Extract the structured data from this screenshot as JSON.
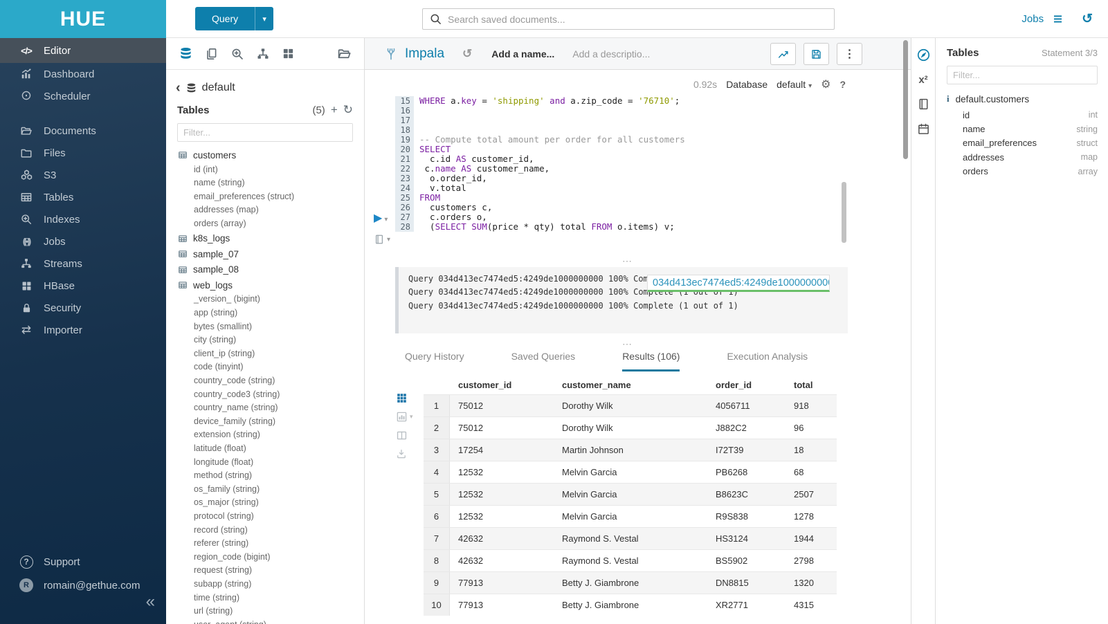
{
  "brand": {
    "name": "HUE"
  },
  "colors": {
    "accent": "#0e7fac",
    "header": "#2ba9c9",
    "sidebar": "#16314c",
    "tab_underline": "#17799f",
    "popover_underline": "#6abf69",
    "keyword": "#7b1fa2",
    "string": "#8f9a00"
  },
  "icons": {
    "editor": "</>",
    "scheduler": "⊙",
    "importer": "⇄",
    "jobs": "((•))",
    "kebab": "⋮",
    "gear": "⚙",
    "help": "?",
    "history": "↺",
    "caret_down": "▾",
    "back": "‹",
    "plus": "+",
    "refresh": "↻",
    "play": "▶",
    "collapse": "«",
    "superscript": "x²",
    "info": "i",
    "ellipsis": "⋯",
    "support": "?"
  },
  "topbar": {
    "query_label": "Query",
    "search_placeholder": "Search saved documents...",
    "jobs_label": "Jobs"
  },
  "sidebar": {
    "items": [
      {
        "label": "Editor"
      },
      {
        "label": "Dashboard"
      },
      {
        "label": "Scheduler"
      },
      {
        "label": "Documents"
      },
      {
        "label": "Files"
      },
      {
        "label": "S3"
      },
      {
        "label": "Tables"
      },
      {
        "label": "Indexes"
      },
      {
        "label": "Jobs"
      },
      {
        "label": "Streams"
      },
      {
        "label": "HBase"
      },
      {
        "label": "Security"
      },
      {
        "label": "Importer"
      }
    ],
    "support_label": "Support",
    "user_email": "romain@gethue.com",
    "user_initial": "R"
  },
  "assist": {
    "breadcrumb": "default",
    "tables_title": "Tables",
    "tables_count": "(5)",
    "filter_placeholder": "Filter...",
    "customers": {
      "name": "customers",
      "columns": [
        "id (int)",
        "name (string)",
        "email_preferences (struct)",
        "addresses (map)",
        "orders (array)"
      ]
    },
    "k8s_logs": {
      "name": "k8s_logs"
    },
    "sample_07": {
      "name": "sample_07"
    },
    "sample_08": {
      "name": "sample_08"
    },
    "web_logs": {
      "name": "web_logs",
      "columns": [
        "_version_ (bigint)",
        "app (string)",
        "bytes (smallint)",
        "city (string)",
        "client_ip (string)",
        "code (tinyint)",
        "country_code (string)",
        "country_code3 (string)",
        "country_name (string)",
        "device_family (string)",
        "extension (string)",
        "latitude (float)",
        "longitude (float)",
        "method (string)",
        "os_family (string)",
        "os_major (string)",
        "protocol (string)",
        "record (string)",
        "referer (string)",
        "region_code (bigint)",
        "request (string)",
        "subapp (string)",
        "time (string)",
        "url (string)",
        "user_agent (string)"
      ]
    }
  },
  "editor": {
    "engine": "Impala",
    "name_placeholder": "Add a name...",
    "description_placeholder": "Add a descriptio...",
    "duration": "0.92s",
    "database_label": "Database",
    "database_value": "default",
    "code": {
      "lines": [
        {
          "n": 15,
          "segs": [
            [
              "kw",
              "WHERE"
            ],
            [
              "t",
              " a."
            ],
            [
              "kw",
              "key"
            ],
            [
              "t",
              " = "
            ],
            [
              "str",
              "'shipping'"
            ],
            [
              "t",
              " "
            ],
            [
              "kw",
              "and"
            ],
            [
              "t",
              " a.zip_code = "
            ],
            [
              "str",
              "'76710'"
            ],
            [
              "t",
              ";"
            ]
          ]
        },
        {
          "n": 16,
          "segs": []
        },
        {
          "n": 17,
          "segs": []
        },
        {
          "n": 18,
          "segs": []
        },
        {
          "n": 19,
          "segs": [
            [
              "com",
              "-- Compute total amount per order for all customers"
            ]
          ]
        },
        {
          "n": 20,
          "segs": [
            [
              "kw",
              "SELECT"
            ]
          ]
        },
        {
          "n": 21,
          "segs": [
            [
              "t",
              "  c.id "
            ],
            [
              "kw",
              "AS"
            ],
            [
              "t",
              " customer_id,"
            ]
          ]
        },
        {
          "n": 22,
          "segs": [
            [
              "t",
              " c."
            ],
            [
              "kw",
              "name"
            ],
            [
              "t",
              " "
            ],
            [
              "kw",
              "AS"
            ],
            [
              "t",
              " customer_name,"
            ]
          ]
        },
        {
          "n": 23,
          "segs": [
            [
              "t",
              "  o.order_id,"
            ]
          ]
        },
        {
          "n": 24,
          "segs": [
            [
              "t",
              "  v.total"
            ]
          ]
        },
        {
          "n": 25,
          "segs": [
            [
              "kw",
              "FROM"
            ]
          ]
        },
        {
          "n": 26,
          "segs": [
            [
              "t",
              "  customers c,"
            ]
          ]
        },
        {
          "n": 27,
          "segs": [
            [
              "t",
              "  c.orders o,"
            ]
          ]
        },
        {
          "n": 28,
          "segs": [
            [
              "t",
              "  ("
            ],
            [
              "kw",
              "SELECT"
            ],
            [
              "t",
              " "
            ],
            [
              "kw",
              "SUM"
            ],
            [
              "t",
              "(price * qty) total "
            ],
            [
              "kw",
              "FROM"
            ],
            [
              "t",
              " o.items) v;"
            ]
          ]
        }
      ]
    },
    "logs": {
      "lines": [
        "Query 034d413ec7474ed5:4249de1000000000 100% Complete (1 out of 1)",
        "Query 034d413ec7474ed5:4249de1000000000 100% Complete (1 out of 1)",
        "Query 034d413ec7474ed5:4249de1000000000 100% Complete (1 out of 1)"
      ],
      "popover": "034d413ec7474ed5:4249de1000000000"
    }
  },
  "tabs": {
    "items": [
      "Query History",
      "Saved Queries",
      "Results (106)",
      "Execution Analysis"
    ],
    "active": "Results (106)"
  },
  "results": {
    "columns": [
      "customer_id",
      "customer_name",
      "order_id",
      "total"
    ],
    "rows": [
      {
        "n": "1",
        "customer_id": "75012",
        "customer_name": "Dorothy Wilk",
        "order_id": "4056711",
        "total": "918"
      },
      {
        "n": "2",
        "customer_id": "75012",
        "customer_name": "Dorothy Wilk",
        "order_id": "J882C2",
        "total": "96"
      },
      {
        "n": "3",
        "customer_id": "17254",
        "customer_name": "Martin Johnson",
        "order_id": "I72T39",
        "total": "18"
      },
      {
        "n": "4",
        "customer_id": "12532",
        "customer_name": "Melvin Garcia",
        "order_id": "PB6268",
        "total": "68"
      },
      {
        "n": "5",
        "customer_id": "12532",
        "customer_name": "Melvin Garcia",
        "order_id": "B8623C",
        "total": "2507"
      },
      {
        "n": "6",
        "customer_id": "12532",
        "customer_name": "Melvin Garcia",
        "order_id": "R9S838",
        "total": "1278"
      },
      {
        "n": "7",
        "customer_id": "42632",
        "customer_name": "Raymond S. Vestal",
        "order_id": "HS3124",
        "total": "1944"
      },
      {
        "n": "8",
        "customer_id": "42632",
        "customer_name": "Raymond S. Vestal",
        "order_id": "BS5902",
        "total": "2798"
      },
      {
        "n": "9",
        "customer_id": "77913",
        "customer_name": "Betty J. Giambrone",
        "order_id": "DN8815",
        "total": "1320"
      },
      {
        "n": "10",
        "customer_id": "77913",
        "customer_name": "Betty J. Giambrone",
        "order_id": "XR2771",
        "total": "4315"
      }
    ]
  },
  "right_panel": {
    "title": "Tables",
    "statement": "Statement 3/3",
    "filter_placeholder": "Filter...",
    "table": "default.customers",
    "columns": [
      {
        "name": "id",
        "type": "int"
      },
      {
        "name": "name",
        "type": "string"
      },
      {
        "name": "email_preferences",
        "type": "struct"
      },
      {
        "name": "addresses",
        "type": "map"
      },
      {
        "name": "orders",
        "type": "array"
      }
    ]
  }
}
